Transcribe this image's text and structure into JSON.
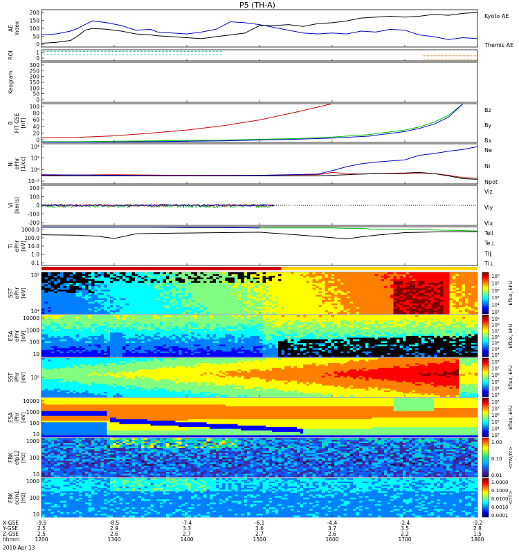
{
  "title": "P5 (TH-A)",
  "colors": {
    "red": "#d00000",
    "green": "#00c000",
    "blue": "#0000c8",
    "black": "#000000",
    "cyan": "#00b0b0",
    "orange": "#c86400",
    "yellow": "#ffd400"
  },
  "colorbars": {
    "jet": [
      "#000080",
      "#0000ff",
      "#0080ff",
      "#00ffff",
      "#80ff80",
      "#ffff00",
      "#ff8000",
      "#ff0000",
      "#800000"
    ],
    "fbk_wave": [
      "#2a0a4a",
      "#3a2aa0",
      "#1060ff",
      "#00c0ff",
      "#00e0a0",
      "#80ff40",
      "#ffff00",
      "#ff8000",
      "#ff0000"
    ]
  },
  "chart_data": [
    {
      "id": "ae",
      "type": "line",
      "ylabel": "AE Index",
      "ylim": [
        0,
        200
      ],
      "yticks": [
        "0",
        "50",
        "100",
        "150",
        "200"
      ],
      "legend": [
        "Kyoto AE",
        "Themis AE"
      ],
      "legend_colors": [
        "blue",
        "black"
      ],
      "x": [
        1200,
        1220,
        1240,
        1250,
        1260,
        1270,
        1290,
        1310,
        1330,
        1350,
        1360,
        1380,
        1400,
        1420,
        1440,
        1460,
        1480,
        1500,
        1520,
        1540,
        1560,
        1580,
        1600,
        1620,
        1640,
        1660,
        1680,
        1700,
        1720,
        1740,
        1760,
        1780,
        1800
      ],
      "series": [
        {
          "name": "Kyoto AE",
          "color": "blue",
          "values": [
            65,
            70,
            85,
            100,
            120,
            140,
            130,
            115,
            90,
            95,
            80,
            75,
            70,
            80,
            95,
            135,
            130,
            120,
            105,
            90,
            75,
            70,
            75,
            70,
            85,
            80,
            95,
            90,
            65,
            55,
            40,
            50,
            45
          ]
        },
        {
          "name": "Themis AE",
          "color": "black",
          "values": [
            20,
            25,
            35,
            60,
            90,
            100,
            95,
            85,
            70,
            65,
            60,
            55,
            50,
            45,
            55,
            65,
            75,
            115,
            115,
            120,
            110,
            125,
            130,
            140,
            155,
            160,
            165,
            160,
            165,
            175,
            170,
            180,
            185
          ]
        }
      ]
    },
    {
      "id": "roi",
      "type": "line",
      "ylabel": "ROI",
      "ylim": [
        0,
        1
      ],
      "yticks": [
        "0",
        "1"
      ],
      "bands": [
        {
          "color": "cyan",
          "x": [
            1200,
            1450
          ],
          "level": 0.85
        },
        {
          "color": "cyan",
          "x": [
            1200,
            1450
          ],
          "level": 0.55
        },
        {
          "color": "orange",
          "x": [
            1725,
            1800
          ],
          "level": 0.45
        },
        {
          "color": "orange",
          "x": [
            1725,
            1800
          ],
          "level": 0.15
        }
      ]
    },
    {
      "id": "keogram",
      "type": "line",
      "ylabel": "Keogram",
      "ylim": [
        0,
        300
      ],
      "yticks": [
        "0",
        "50",
        "100",
        "150",
        "200",
        "250",
        "300"
      ]
    },
    {
      "id": "bfield",
      "type": "line",
      "ylabel": "B FIT GSE [nT]",
      "ylim": [
        0,
        100
      ],
      "yticks": [
        "0",
        "20",
        "40",
        "60",
        "80",
        "100"
      ],
      "legend": [
        "Bz",
        "By",
        "Bx"
      ],
      "legend_colors": [
        "red",
        "green",
        "blue"
      ],
      "x": [
        1200,
        1250,
        1300,
        1350,
        1400,
        1450,
        1500,
        1550,
        1600,
        1650,
        1700,
        1720,
        1740,
        1760,
        1780,
        1800
      ],
      "series": [
        {
          "name": "Bz",
          "color": "red",
          "values": [
            12,
            13,
            17,
            24,
            32,
            43,
            58,
            78,
            101,
            null,
            null,
            null,
            null,
            null,
            null,
            null
          ]
        },
        {
          "name": "By",
          "color": "green",
          "values": [
            2,
            2,
            3,
            4,
            5,
            6,
            8,
            10,
            14,
            20,
            32,
            40,
            52,
            70,
            101,
            null
          ]
        },
        {
          "name": "Bx",
          "color": "blue",
          "values": [
            0,
            0,
            1,
            2,
            3,
            4,
            6,
            8,
            11,
            16,
            28,
            36,
            47,
            65,
            101,
            null
          ]
        }
      ]
    },
    {
      "id": "ni",
      "type": "line",
      "ylabel": "Ni ePhr [1/cc]",
      "ylim": [
        -2,
        5
      ],
      "yticks": [
        "10⁻²",
        "10⁰",
        "10²",
        "10⁴"
      ],
      "log": true,
      "legend": [
        "Ne",
        "Ni",
        "Npot"
      ],
      "legend_colors": [
        "red",
        "black",
        "blue"
      ],
      "x": [
        1200,
        1300,
        1400,
        1500,
        1580,
        1600,
        1620,
        1640,
        1660,
        1700,
        1720,
        1740,
        1760,
        1780,
        1800
      ],
      "series": [
        {
          "name": "Ne",
          "color": "red",
          "values": [
            -0.5,
            -0.4,
            -0.5,
            -0.5,
            -0.4,
            0.0,
            -0.2,
            -0.3,
            -0.2,
            -0.2,
            -0.1,
            -0.2,
            -0.5,
            -0.9,
            -1.0
          ]
        },
        {
          "name": "Ni",
          "color": "black",
          "values": [
            -0.6,
            -0.6,
            -0.6,
            -0.6,
            -0.6,
            -0.5,
            -0.4,
            -0.3,
            -0.2,
            -0.1,
            0.0,
            -0.2,
            -0.6,
            -1.1,
            -1.2
          ]
        },
        {
          "name": "Npot",
          "color": "blue",
          "values": [
            -0.4,
            -0.5,
            -0.6,
            -0.5,
            -0.3,
            0.3,
            1.0,
            1.5,
            1.8,
            2.2,
            3.0,
            3.3,
            3.7,
            4.0,
            4.5
          ]
        }
      ]
    },
    {
      "id": "vi",
      "type": "line",
      "ylabel": "Vi [km/s]",
      "ylim": [
        -300,
        300
      ],
      "yticks": [
        "-200",
        "-100",
        "0",
        "100",
        "200"
      ],
      "legend": [
        "Viz",
        "Viy",
        "Vix"
      ],
      "legend_colors": [
        "red",
        "green",
        "blue"
      ],
      "noisy_range": [
        1200,
        1520
      ]
    },
    {
      "id": "ti",
      "type": "line",
      "ylabel": "Ti ePhr [eV]",
      "ylim": [
        -1,
        3.6
      ],
      "log": true,
      "yticks": [
        "0.1",
        "1.0",
        "10.0",
        "100.0",
        "1000.0"
      ],
      "legend": [
        "Tell",
        "Te⊥",
        "Ti∥",
        "Ti⊥"
      ],
      "legend_colors": [
        "black",
        "red",
        "green",
        "blue"
      ],
      "x": [
        1200,
        1250,
        1280,
        1300,
        1330,
        1350,
        1400,
        1450,
        1500,
        1550,
        1600,
        1620,
        1640,
        1660,
        1700,
        1750,
        1800
      ],
      "series": [
        {
          "name": "Tell",
          "color": "black",
          "values": [
            2.65,
            2.6,
            2.45,
            2.2,
            2.75,
            2.8,
            2.85,
            2.9,
            2.95,
            2.65,
            2.3,
            2.15,
            2.4,
            2.6,
            2.9,
            3.0,
            3.0
          ]
        },
        {
          "name": "Ti∥",
          "color": "green",
          "values": [
            3.55,
            3.55,
            3.55,
            3.55,
            3.55,
            3.55,
            3.5,
            3.5,
            3.45,
            3.45,
            3.45,
            3.4,
            3.4,
            3.3,
            3.3,
            3.2,
            3.1
          ]
        },
        {
          "name": "Ti⊥",
          "color": "blue",
          "values": [
            3.55,
            3.55,
            3.55,
            3.55,
            3.55,
            3.55,
            3.5,
            3.5,
            3.45,
            null,
            null,
            null,
            null,
            null,
            null,
            null,
            null
          ]
        }
      ]
    },
    {
      "id": "sst_e",
      "type": "heatmap",
      "ylabel": "SST ePhr [eV]",
      "yticks": [
        "10⁴",
        "10⁵"
      ],
      "colorbar": {
        "scale": "jet",
        "ticks": [
          "10⁸",
          "10⁷",
          "10⁶",
          "10⁵",
          "10⁴",
          "10³"
        ],
        "label": "Eflux, EFU"
      }
    },
    {
      "id": "esa_e",
      "type": "heatmap",
      "ylabel": "ESA ePhr [eV]",
      "yticks": [
        "10",
        "100",
        "1000",
        "10000"
      ],
      "colorbar": {
        "scale": "jet",
        "ticks": [
          "10⁹",
          "10⁸",
          "10⁷",
          "10⁶",
          "10⁵",
          "10⁴",
          "10³"
        ],
        "label": "Eflux, EFU"
      }
    },
    {
      "id": "sst_i",
      "type": "heatmap",
      "ylabel": "SST iPhr [eV]",
      "yticks": [
        "10⁵"
      ],
      "colorbar": {
        "scale": "jet",
        "ticks": [
          "10⁸",
          "10⁷",
          "10⁶",
          "10⁵",
          "10⁴",
          "10³"
        ],
        "label": "Eflux, EFU"
      }
    },
    {
      "id": "esa_i",
      "type": "heatmap",
      "ylabel": "ESA iPhr [eV]",
      "yticks": [
        "10",
        "100",
        "1000",
        "10000"
      ],
      "colorbar": {
        "scale": "jet",
        "ticks": [
          "10⁸",
          "10⁷",
          "10⁶",
          "10⁵",
          "10⁴",
          "10³"
        ],
        "label": "Eflux, EFU"
      }
    },
    {
      "id": "fbk_e",
      "type": "heatmap",
      "ylabel": "FBK efp12 [Hz]",
      "yticks": [
        "10",
        "100",
        "1000"
      ],
      "colorbar": {
        "scale": "fbk_wave",
        "ticks": [
          "1.00",
          "0.10",
          "0.01"
        ],
        "label": "<mV/m>"
      }
    },
    {
      "id": "fbk_b",
      "type": "heatmap",
      "ylabel": "FBK scm1 [Hz]",
      "yticks": [
        "10",
        "100",
        "1000"
      ],
      "colorbar": {
        "scale": "jet",
        "ticks": [
          "1.0000",
          "0.1000",
          "0.0100",
          "0.0010",
          "0.0001"
        ],
        "label": "<nT>"
      }
    }
  ],
  "xaxis": {
    "xlim": [
      1200,
      1800
    ],
    "tick_values": [
      1200,
      1300,
      1400,
      1500,
      1600,
      1700,
      1800
    ],
    "rows": [
      {
        "label": "X-GSE",
        "values": [
          "-9.5",
          "-8.5",
          "-7.4",
          "-6.1",
          "-4.4",
          "-2.4",
          "-0.2"
        ]
      },
      {
        "label": "Y-GSE",
        "values": [
          "2.5",
          "2.9",
          "3.3",
          "3.6",
          "3.7",
          "3.5",
          "2.8"
        ]
      },
      {
        "label": "Z-GSE",
        "values": [
          "2.5",
          "2.6",
          "2.7",
          "2.7",
          "2.6",
          "2.2",
          "1.5"
        ]
      },
      {
        "label": "hhmm",
        "values": [
          "1200",
          "1300",
          "1400",
          "1500",
          "1600",
          "1700",
          "1800"
        ]
      }
    ],
    "date": "2010 Apr 13"
  }
}
